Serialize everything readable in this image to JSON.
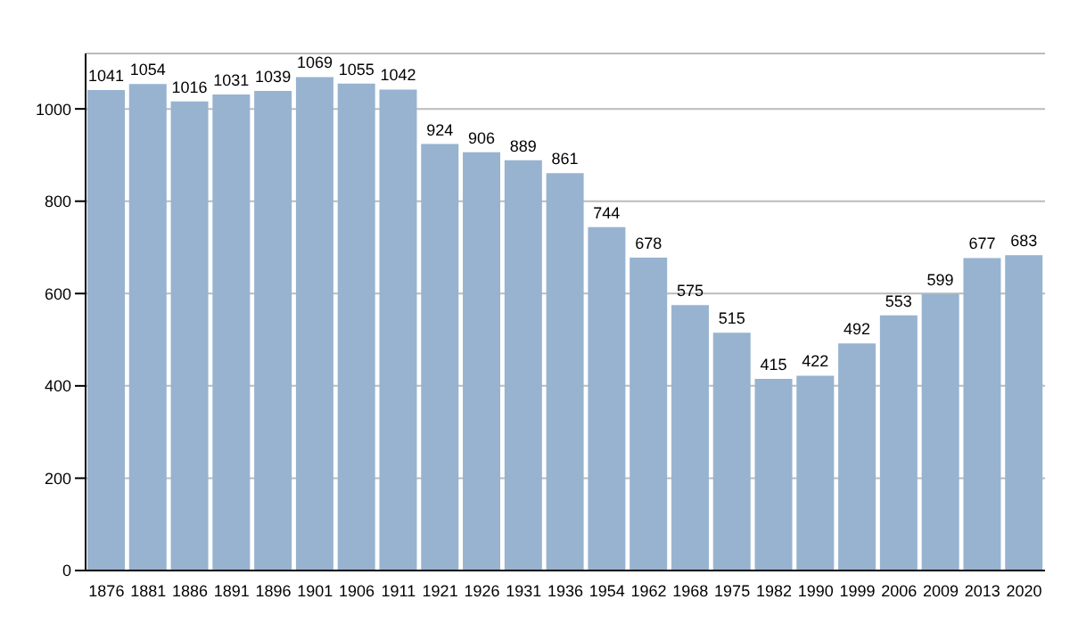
{
  "chart_data": {
    "type": "bar",
    "categories": [
      "1876",
      "1881",
      "1886",
      "1891",
      "1896",
      "1901",
      "1906",
      "1911",
      "1921",
      "1926",
      "1931",
      "1936",
      "1954",
      "1962",
      "1968",
      "1975",
      "1982",
      "1990",
      "1999",
      "2006",
      "2009",
      "2013",
      "2020"
    ],
    "values": [
      1041,
      1054,
      1016,
      1031,
      1039,
      1069,
      1055,
      1042,
      924,
      906,
      889,
      861,
      744,
      678,
      575,
      515,
      415,
      422,
      492,
      553,
      599,
      677,
      683
    ],
    "color": "#97b3d0",
    "ylim": [
      0,
      1120
    ],
    "yticks": [
      0,
      200,
      400,
      600,
      800,
      1000
    ],
    "grid": "y",
    "data_labels": true
  }
}
